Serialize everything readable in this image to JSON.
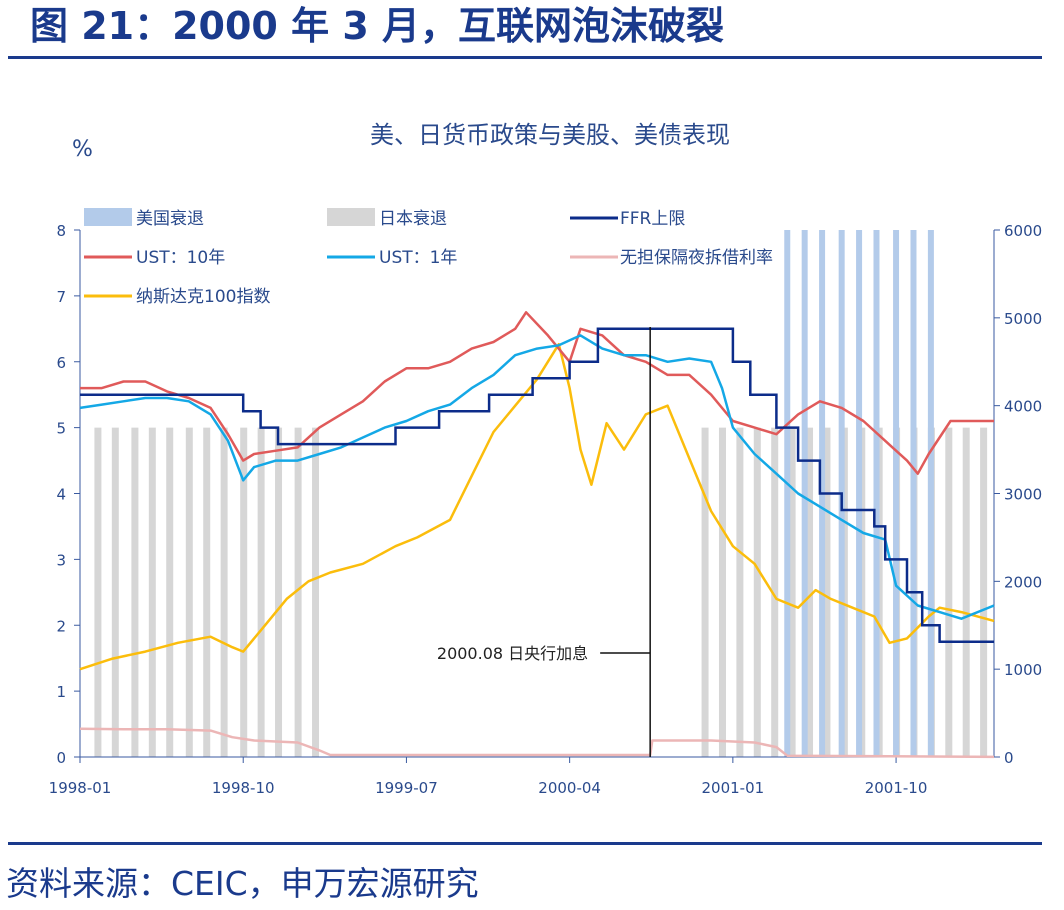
{
  "page": {
    "figure_title": "图 21：2000 年 3 月，互联网泡沫破裂",
    "source": "资料来源：CEIC，申万宏源研究"
  },
  "colors": {
    "us_recession": "#b3cbea",
    "japan_recession": "#d6d6d6",
    "ffr": "#0c2c8a",
    "ust10": "#e05a5a",
    "ust1": "#14a8e6",
    "overnight": "#ecb6b6",
    "nasdaq": "#fbbd0c",
    "axis": "#3a5aa0",
    "title_blue": "#1a3a8c"
  },
  "chart_data": {
    "type": "line",
    "title": "美、日货币政策与美股、美债表现",
    "ylabel_left": "%",
    "ylim_left": [
      0,
      8
    ],
    "yticks_left": [
      "0",
      "1",
      "2",
      "3",
      "4",
      "5",
      "6",
      "7",
      "8"
    ],
    "ylim_right": [
      0,
      6000
    ],
    "yticks_right": [
      "0",
      "1000",
      "2000",
      "3000",
      "4000",
      "5000",
      "6000"
    ],
    "xlim": [
      1998.0,
      2002.2
    ],
    "xticks": [
      {
        "t": 1998.0,
        "label": "1998-01"
      },
      {
        "t": 1998.75,
        "label": "1998-10"
      },
      {
        "t": 1999.5,
        "label": "1999-07"
      },
      {
        "t": 2000.25,
        "label": "2000-04"
      },
      {
        "t": 2001.0,
        "label": "2001-01"
      },
      {
        "t": 2001.75,
        "label": "2001-10"
      }
    ],
    "legend": {
      "placement": "top-left",
      "us_recession": "美国衰退",
      "japan_recession": "日本衰退",
      "ffr": "FFR上限",
      "ust10": "UST：10年",
      "ust1": "UST：1年",
      "overnight": "无担保隔夜拆借利率",
      "nasdaq": "纳斯达克100指数"
    },
    "annotation": {
      "text": "2000.08 日央行加息",
      "t": 2000.62
    },
    "japan_recession_stripes": [
      1998.08,
      1998.16,
      1998.25,
      1998.33,
      1998.41,
      1998.5,
      1998.58,
      1998.66,
      1998.75,
      1998.83,
      1998.91,
      1999.0,
      1999.08,
      2000.87,
      2000.95,
      2001.03,
      2001.11,
      2001.19,
      2001.27,
      2001.35,
      2001.43,
      2001.51,
      2001.59,
      2001.67,
      2001.75,
      2001.83,
      2001.91,
      2001.99,
      2002.07,
      2002.15
    ],
    "japan_recession_height": 5.0,
    "us_recession_stripes": [
      2001.25,
      2001.33,
      2001.41,
      2001.5,
      2001.58,
      2001.66,
      2001.75,
      2001.83,
      2001.91
    ],
    "us_recession_height": 8.0,
    "ffr": {
      "name": "FFR上限",
      "steps": [
        [
          1998.0,
          5.5
        ],
        [
          1998.75,
          5.25
        ],
        [
          1998.83,
          5.0
        ],
        [
          1998.91,
          4.75
        ],
        [
          1999.45,
          5.0
        ],
        [
          1999.65,
          5.25
        ],
        [
          1999.88,
          5.5
        ],
        [
          2000.08,
          5.75
        ],
        [
          2000.25,
          6.0
        ],
        [
          2000.38,
          6.5
        ],
        [
          2001.0,
          6.0
        ],
        [
          2001.08,
          5.5
        ],
        [
          2001.2,
          5.0
        ],
        [
          2001.3,
          4.5
        ],
        [
          2001.4,
          4.0
        ],
        [
          2001.5,
          3.75
        ],
        [
          2001.65,
          3.5
        ],
        [
          2001.7,
          3.0
        ],
        [
          2001.8,
          2.5
        ],
        [
          2001.87,
          2.0
        ],
        [
          2001.95,
          1.75
        ],
        [
          2002.2,
          1.75
        ]
      ]
    },
    "ust10": {
      "name": "UST：10年",
      "points": [
        [
          1998.0,
          5.6
        ],
        [
          1998.1,
          5.6
        ],
        [
          1998.2,
          5.7
        ],
        [
          1998.3,
          5.7
        ],
        [
          1998.4,
          5.55
        ],
        [
          1998.5,
          5.45
        ],
        [
          1998.6,
          5.3
        ],
        [
          1998.68,
          4.9
        ],
        [
          1998.75,
          4.5
        ],
        [
          1998.8,
          4.6
        ],
        [
          1998.9,
          4.65
        ],
        [
          1999.0,
          4.7
        ],
        [
          1999.1,
          5.0
        ],
        [
          1999.2,
          5.2
        ],
        [
          1999.3,
          5.4
        ],
        [
          1999.4,
          5.7
        ],
        [
          1999.5,
          5.9
        ],
        [
          1999.6,
          5.9
        ],
        [
          1999.7,
          6.0
        ],
        [
          1999.8,
          6.2
        ],
        [
          1999.9,
          6.3
        ],
        [
          2000.0,
          6.5
        ],
        [
          2000.05,
          6.75
        ],
        [
          2000.15,
          6.4
        ],
        [
          2000.25,
          6.0
        ],
        [
          2000.3,
          6.5
        ],
        [
          2000.4,
          6.4
        ],
        [
          2000.5,
          6.1
        ],
        [
          2000.6,
          6.0
        ],
        [
          2000.7,
          5.8
        ],
        [
          2000.8,
          5.8
        ],
        [
          2000.9,
          5.5
        ],
        [
          2001.0,
          5.1
        ],
        [
          2001.1,
          5.0
        ],
        [
          2001.2,
          4.9
        ],
        [
          2001.3,
          5.2
        ],
        [
          2001.4,
          5.4
        ],
        [
          2001.5,
          5.3
        ],
        [
          2001.6,
          5.1
        ],
        [
          2001.7,
          4.8
        ],
        [
          2001.8,
          4.5
        ],
        [
          2001.85,
          4.3
        ],
        [
          2001.9,
          4.6
        ],
        [
          2002.0,
          5.1
        ],
        [
          2002.1,
          5.1
        ],
        [
          2002.2,
          5.1
        ]
      ]
    },
    "ust1": {
      "name": "UST：1年",
      "points": [
        [
          1998.0,
          5.3
        ],
        [
          1998.1,
          5.35
        ],
        [
          1998.2,
          5.4
        ],
        [
          1998.3,
          5.45
        ],
        [
          1998.4,
          5.45
        ],
        [
          1998.5,
          5.4
        ],
        [
          1998.6,
          5.2
        ],
        [
          1998.68,
          4.8
        ],
        [
          1998.75,
          4.2
        ],
        [
          1998.8,
          4.4
        ],
        [
          1998.9,
          4.5
        ],
        [
          1999.0,
          4.5
        ],
        [
          1999.1,
          4.6
        ],
        [
          1999.2,
          4.7
        ],
        [
          1999.3,
          4.85
        ],
        [
          1999.4,
          5.0
        ],
        [
          1999.5,
          5.1
        ],
        [
          1999.6,
          5.25
        ],
        [
          1999.7,
          5.35
        ],
        [
          1999.8,
          5.6
        ],
        [
          1999.9,
          5.8
        ],
        [
          2000.0,
          6.1
        ],
        [
          2000.1,
          6.2
        ],
        [
          2000.2,
          6.25
        ],
        [
          2000.3,
          6.4
        ],
        [
          2000.4,
          6.2
        ],
        [
          2000.5,
          6.1
        ],
        [
          2000.6,
          6.1
        ],
        [
          2000.7,
          6.0
        ],
        [
          2000.8,
          6.05
        ],
        [
          2000.9,
          6.0
        ],
        [
          2000.95,
          5.6
        ],
        [
          2001.0,
          5.0
        ],
        [
          2001.1,
          4.6
        ],
        [
          2001.2,
          4.3
        ],
        [
          2001.3,
          4.0
        ],
        [
          2001.4,
          3.8
        ],
        [
          2001.5,
          3.6
        ],
        [
          2001.6,
          3.4
        ],
        [
          2001.7,
          3.3
        ],
        [
          2001.75,
          2.6
        ],
        [
          2001.85,
          2.3
        ],
        [
          2001.95,
          2.2
        ],
        [
          2002.05,
          2.1
        ],
        [
          2002.2,
          2.3
        ]
      ]
    },
    "overnight": {
      "name": "无担保隔夜拆借利率",
      "points": [
        [
          1998.0,
          0.43
        ],
        [
          1998.2,
          0.42
        ],
        [
          1998.4,
          0.42
        ],
        [
          1998.6,
          0.4
        ],
        [
          1998.7,
          0.3
        ],
        [
          1998.8,
          0.25
        ],
        [
          1999.0,
          0.22
        ],
        [
          1999.1,
          0.1
        ],
        [
          1999.15,
          0.03
        ],
        [
          1999.5,
          0.03
        ],
        [
          2000.0,
          0.03
        ],
        [
          2000.3,
          0.03
        ],
        [
          2000.62,
          0.03
        ],
        [
          2000.63,
          0.25
        ],
        [
          2000.9,
          0.25
        ],
        [
          2001.1,
          0.22
        ],
        [
          2001.2,
          0.15
        ],
        [
          2001.25,
          0.02
        ],
        [
          2002.2,
          0.002
        ]
      ]
    },
    "nasdaq": {
      "name": "纳斯达克100指数",
      "axis": "right",
      "points": [
        [
          1998.0,
          1000
        ],
        [
          1998.15,
          1120
        ],
        [
          1998.3,
          1200
        ],
        [
          1998.45,
          1300
        ],
        [
          1998.6,
          1370
        ],
        [
          1998.7,
          1250
        ],
        [
          1998.75,
          1200
        ],
        [
          1998.85,
          1500
        ],
        [
          1998.95,
          1800
        ],
        [
          1999.05,
          2000
        ],
        [
          1999.15,
          2100
        ],
        [
          1999.3,
          2200
        ],
        [
          1999.45,
          2400
        ],
        [
          1999.55,
          2500
        ],
        [
          1999.7,
          2700
        ],
        [
          1999.8,
          3200
        ],
        [
          1999.9,
          3700
        ],
        [
          2000.0,
          4000
        ],
        [
          2000.1,
          4300
        ],
        [
          2000.2,
          4700
        ],
        [
          2000.25,
          4200
        ],
        [
          2000.3,
          3500
        ],
        [
          2000.35,
          3100
        ],
        [
          2000.42,
          3800
        ],
        [
          2000.5,
          3500
        ],
        [
          2000.6,
          3900
        ],
        [
          2000.7,
          4000
        ],
        [
          2000.8,
          3400
        ],
        [
          2000.9,
          2800
        ],
        [
          2000.95,
          2600
        ],
        [
          2001.0,
          2400
        ],
        [
          2001.1,
          2200
        ],
        [
          2001.2,
          1800
        ],
        [
          2001.3,
          1700
        ],
        [
          2001.38,
          1900
        ],
        [
          2001.45,
          1800
        ],
        [
          2001.55,
          1700
        ],
        [
          2001.65,
          1600
        ],
        [
          2001.72,
          1300
        ],
        [
          2001.8,
          1350
        ],
        [
          2001.9,
          1600
        ],
        [
          2001.95,
          1700
        ],
        [
          2002.05,
          1650
        ],
        [
          2002.2,
          1550
        ]
      ]
    }
  }
}
